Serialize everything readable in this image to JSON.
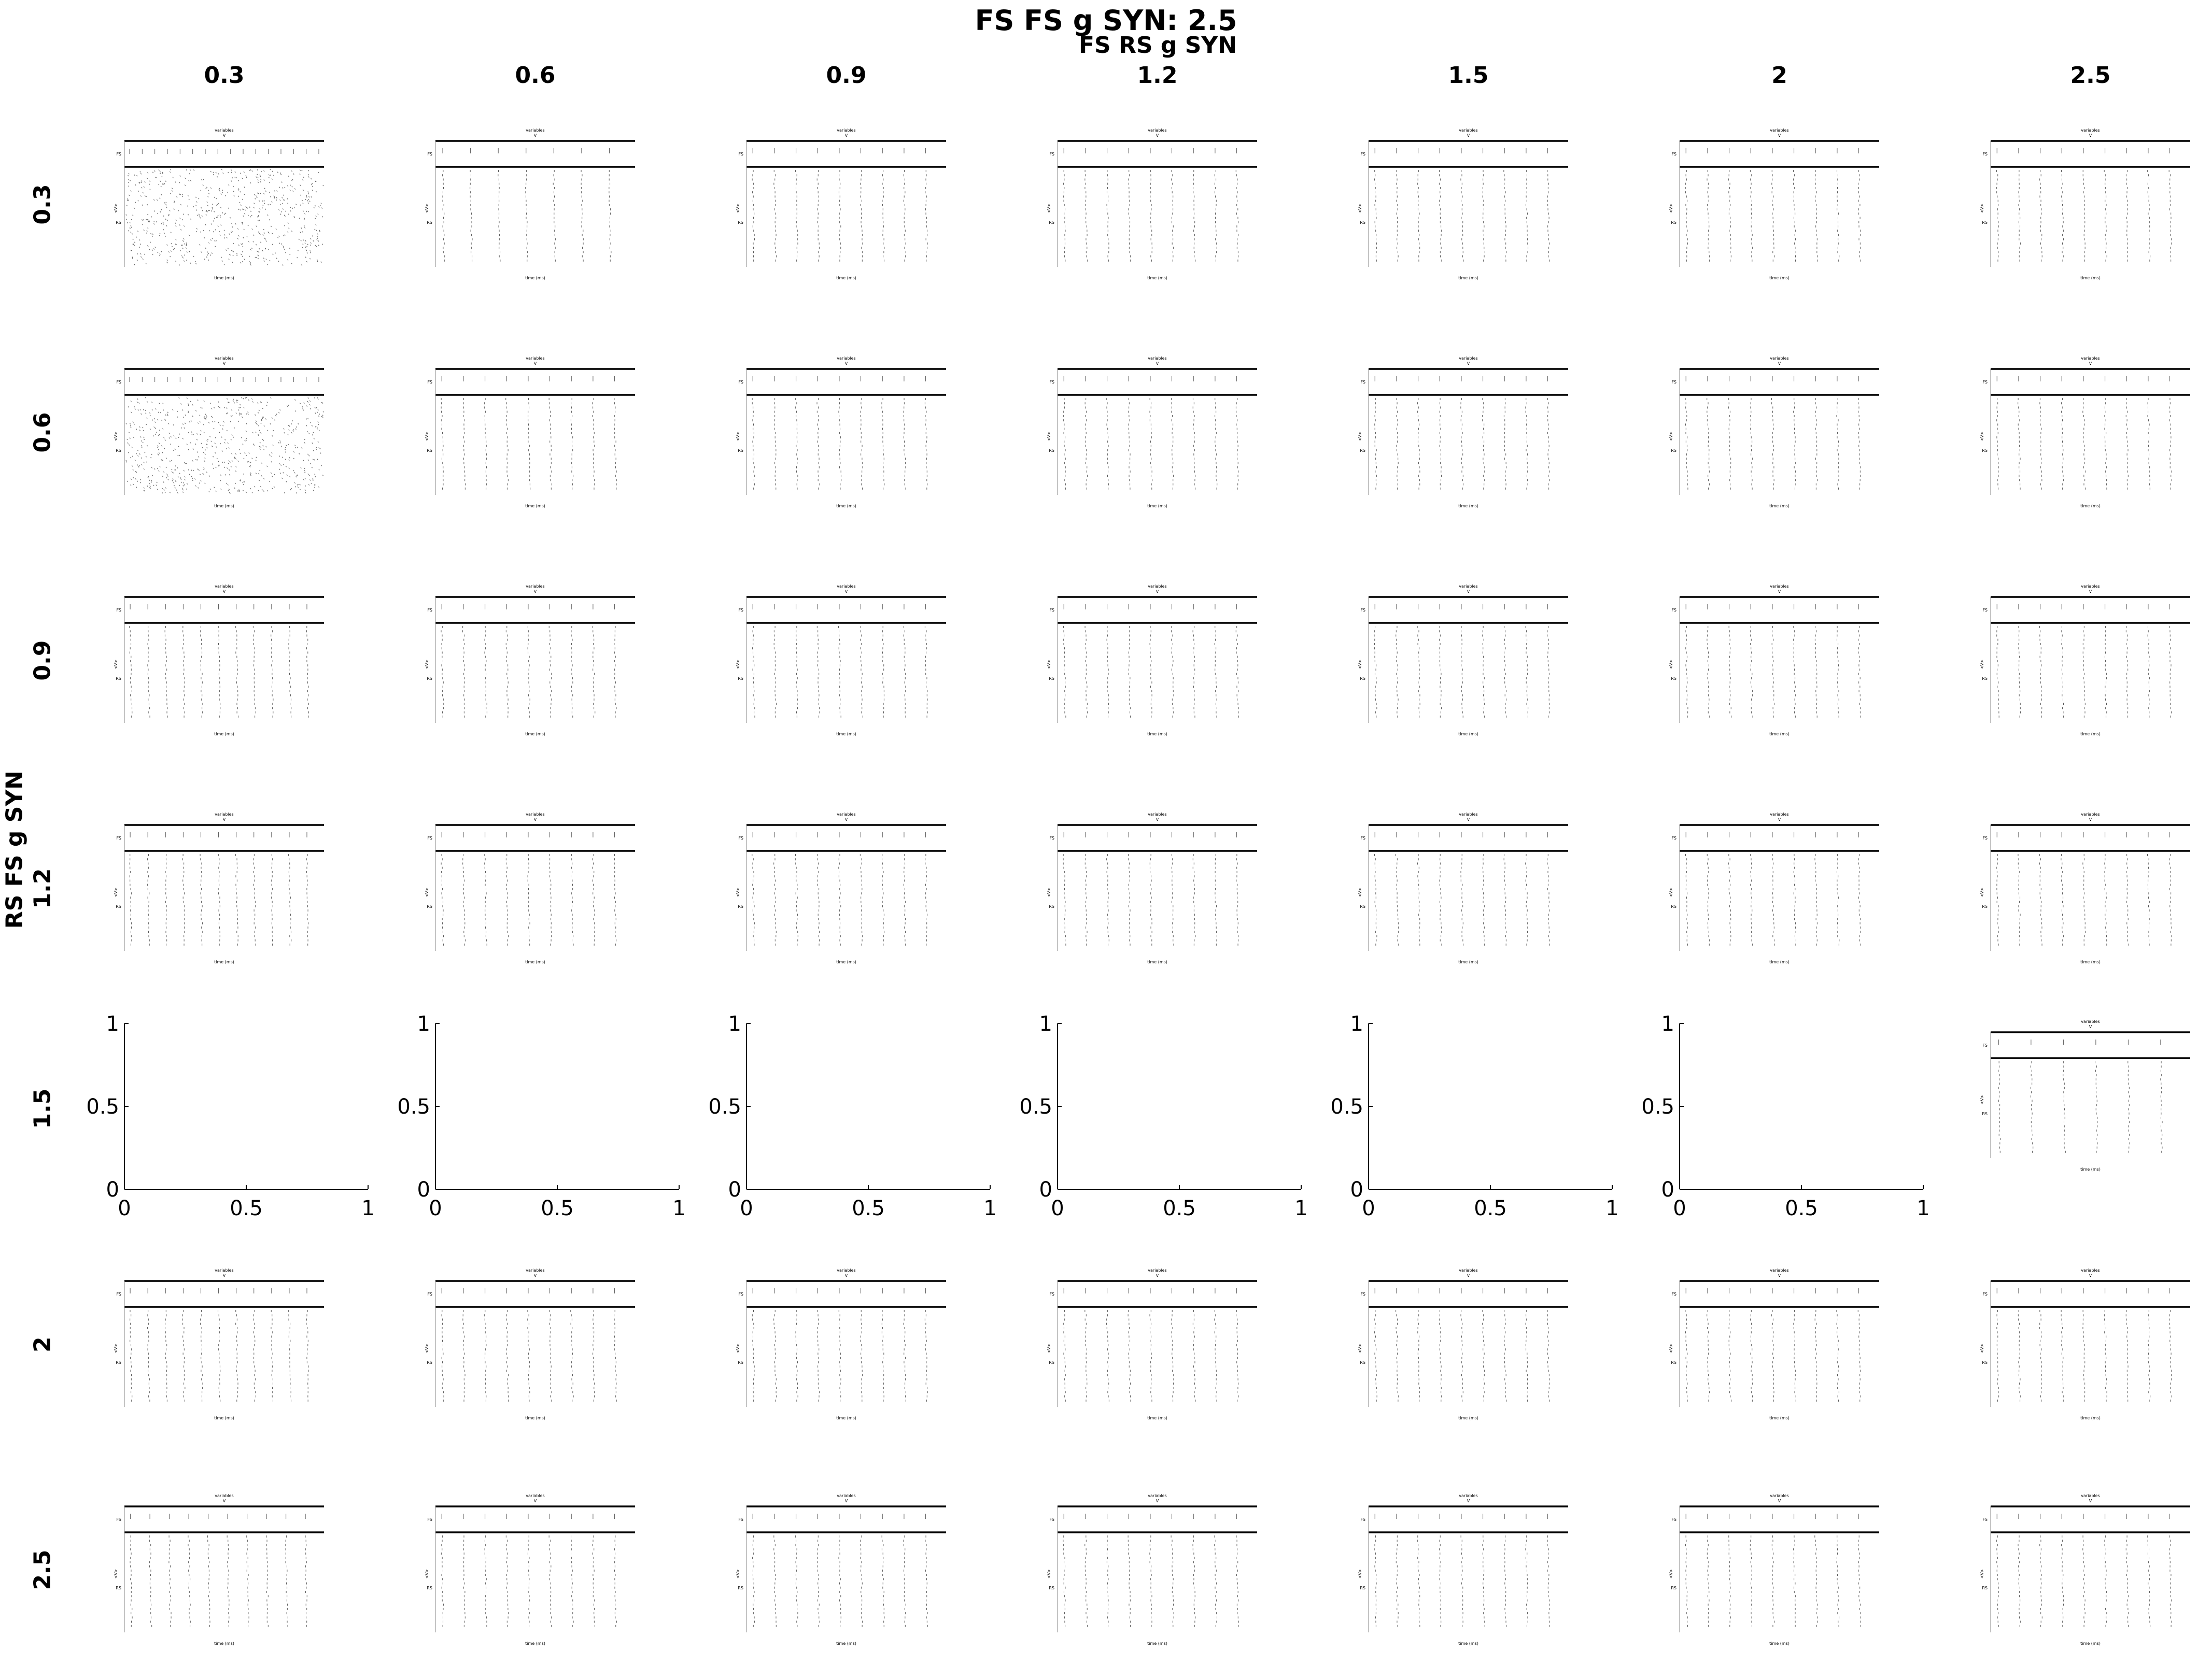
{
  "figure": {
    "title": "FS FS g SYN: 2.5",
    "col_axis_title": "FS RS g SYN",
    "row_axis_title": "RS FS g SYN",
    "col_values": [
      "0.3",
      "0.6",
      "0.9",
      "1.2",
      "1.5",
      "2",
      "2.5"
    ],
    "row_values": [
      "0.3",
      "0.6",
      "0.9",
      "1.2",
      "1.5",
      "2",
      "2.5"
    ]
  },
  "chart_data": {
    "type": "scatter",
    "description_of_grid": "7x7 grid of raster plots; rows = RS FS g SYN, cols = FS RS g SYN",
    "panel_title": "variables",
    "panel_subtitle": "V",
    "populations": [
      "FS",
      "RS"
    ],
    "ylabel": "<V>",
    "xlabel": "time (ms)",
    "empty_panel": {
      "row": "1.5",
      "cols_empty": [
        "0.3",
        "0.6",
        "0.9",
        "1.2",
        "1.5",
        "2"
      ],
      "xlim": [
        0,
        1
      ],
      "ylim": [
        0,
        1
      ],
      "xticks": [
        "0",
        "0.5",
        "1"
      ],
      "yticks": [
        "0",
        "0.5",
        "1"
      ]
    },
    "bursts_per_panel": {
      "0.3": [
        0,
        7,
        9,
        9,
        9,
        9,
        9
      ],
      "0.6": [
        0,
        9,
        9,
        9,
        9,
        9,
        9
      ],
      "0.9": [
        11,
        9,
        9,
        9,
        9,
        9,
        9
      ],
      "1.2": [
        11,
        9,
        9,
        9,
        9,
        9,
        9
      ],
      "1.5": [
        -1,
        -1,
        -1,
        -1,
        -1,
        -1,
        6
      ],
      "2": [
        11,
        9,
        9,
        9,
        9,
        9,
        9
      ],
      "2.5": [
        10,
        9,
        9,
        9,
        9,
        9,
        9
      ]
    }
  }
}
